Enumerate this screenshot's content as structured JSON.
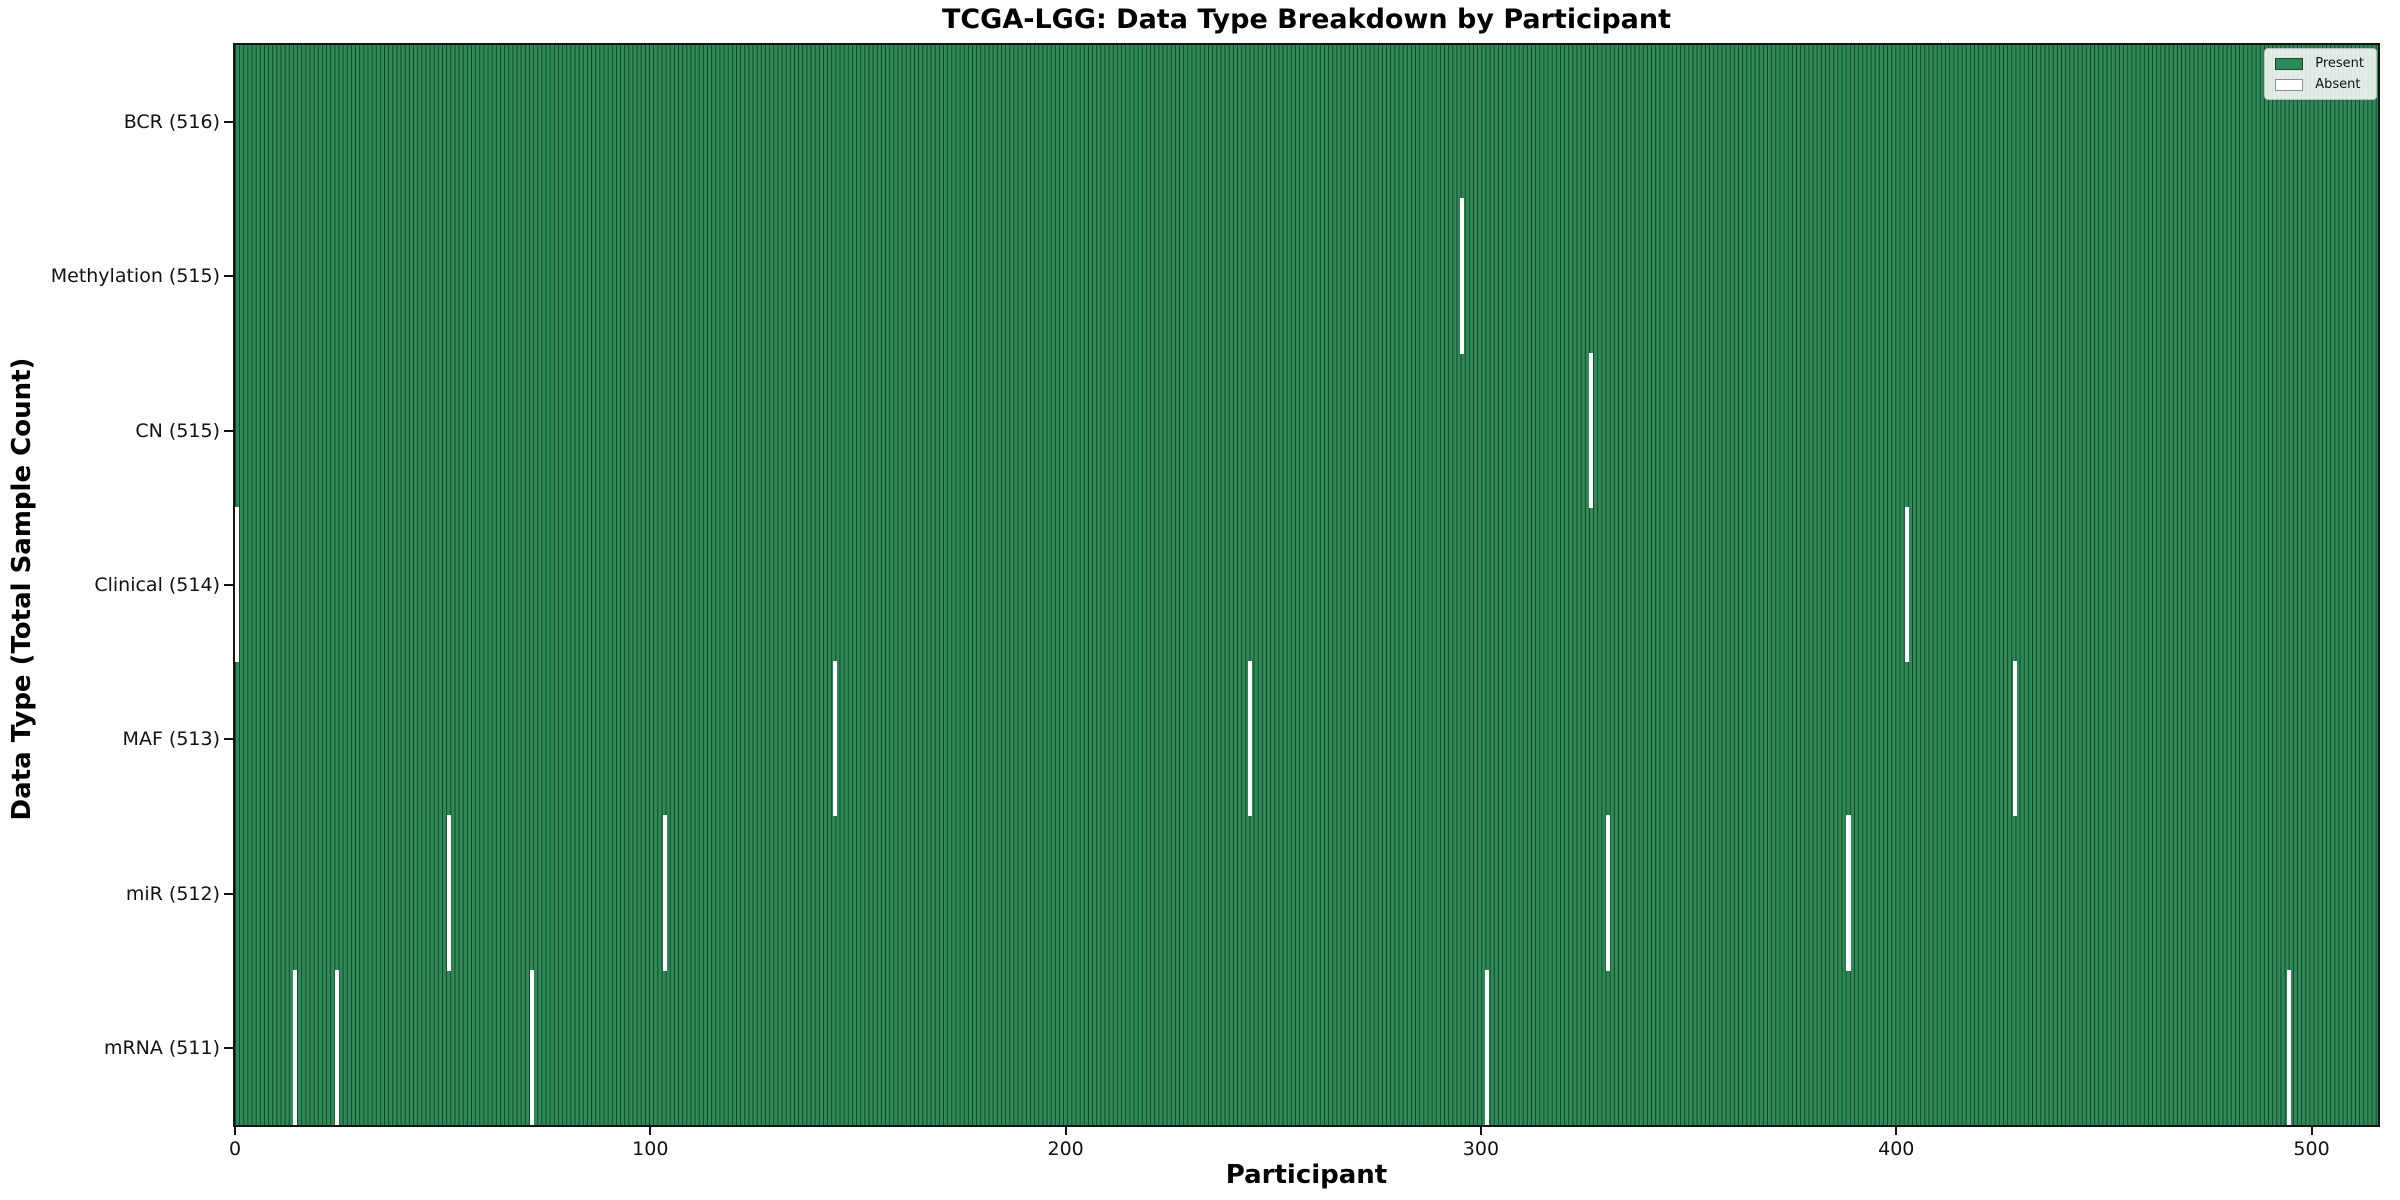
{
  "chart_data": {
    "type": "heatmap",
    "title": "TCGA-LGG: Data Type Breakdown by Participant",
    "xlabel": "Participant",
    "ylabel": "Data Type (Total Sample Count)",
    "n_participants": 516,
    "x_range": [
      0,
      516
    ],
    "x_ticks": [
      0,
      100,
      200,
      300,
      400,
      500
    ],
    "grid": false,
    "legend_position": "upper right",
    "colors": {
      "present": "#2e8b57",
      "absent": "#ffffff",
      "bar_edge": "rgba(0,0,0,0.55)",
      "axis": "#151515"
    },
    "legend": [
      {
        "label": "Present",
        "color": "#2e8b57"
      },
      {
        "label": "Absent",
        "color": "#ffffff"
      }
    ],
    "rows": [
      {
        "label": "BCR (516)",
        "data_type": "BCR",
        "total": 516,
        "absent_participants": []
      },
      {
        "label": "Methylation (515)",
        "data_type": "Methylation",
        "total": 515,
        "absent_participants": [
          295
        ]
      },
      {
        "label": "CN (515)",
        "data_type": "CN",
        "total": 515,
        "absent_participants": [
          326
        ]
      },
      {
        "label": "Clinical (514)",
        "data_type": "Clinical",
        "total": 514,
        "absent_participants": [
          0,
          402
        ]
      },
      {
        "label": "MAF (513)",
        "data_type": "MAF",
        "total": 513,
        "absent_participants": [
          144,
          244,
          428
        ]
      },
      {
        "label": "miR (512)",
        "data_type": "miR",
        "total": 512,
        "absent_participants": [
          51,
          103,
          330,
          388
        ]
      },
      {
        "label": "mRNA (511)",
        "data_type": "mRNA",
        "total": 511,
        "absent_participants": [
          14,
          24,
          71,
          301,
          494
        ]
      }
    ]
  }
}
